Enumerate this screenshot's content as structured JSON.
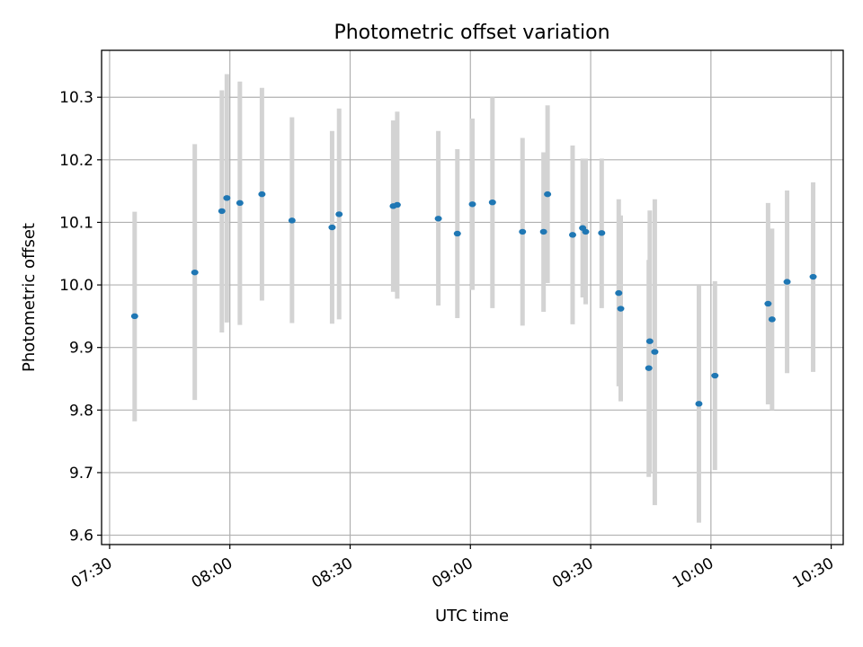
{
  "chart_data": {
    "type": "scatter",
    "title": "Photometric offset variation",
    "xlabel": "UTC time",
    "ylabel": "Photometric offset",
    "xlim": [
      "07:28",
      "10:33"
    ],
    "ylim": [
      9.585,
      10.375
    ],
    "grid": true,
    "x_ticks": [
      "07:30",
      "08:00",
      "08:30",
      "09:00",
      "09:30",
      "10:00",
      "10:30"
    ],
    "y_ticks": [
      9.6,
      9.7,
      9.8,
      9.9,
      10.0,
      10.1,
      10.2,
      10.3
    ],
    "y_tick_labels": [
      "9.6",
      "9.7",
      "9.8",
      "9.9",
      "10.0",
      "10.1",
      "10.2",
      "10.3"
    ],
    "marker_color": "#1f77b4",
    "errorbar_color": "#d3d3d3",
    "points": [
      {
        "t": "07:36:15",
        "y": 9.95,
        "lo": 9.782,
        "hi": 10.117
      },
      {
        "t": "07:51:15",
        "y": 10.02,
        "lo": 9.816,
        "hi": 10.225
      },
      {
        "t": "07:58:00",
        "y": 10.118,
        "lo": 9.924,
        "hi": 10.311
      },
      {
        "t": "07:59:15",
        "y": 10.139,
        "lo": 9.94,
        "hi": 10.337
      },
      {
        "t": "08:02:30",
        "y": 10.131,
        "lo": 9.936,
        "hi": 10.325
      },
      {
        "t": "08:08:00",
        "y": 10.145,
        "lo": 9.975,
        "hi": 10.315
      },
      {
        "t": "08:15:30",
        "y": 10.103,
        "lo": 9.939,
        "hi": 10.268
      },
      {
        "t": "08:25:30",
        "y": 10.092,
        "lo": 9.938,
        "hi": 10.246
      },
      {
        "t": "08:27:15",
        "y": 10.113,
        "lo": 9.945,
        "hi": 10.282
      },
      {
        "t": "08:40:45",
        "y": 10.126,
        "lo": 9.989,
        "hi": 10.263
      },
      {
        "t": "08:41:45",
        "y": 10.128,
        "lo": 9.978,
        "hi": 10.277
      },
      {
        "t": "08:52:00",
        "y": 10.106,
        "lo": 9.967,
        "hi": 10.246
      },
      {
        "t": "08:56:45",
        "y": 10.082,
        "lo": 9.947,
        "hi": 10.217
      },
      {
        "t": "09:00:30",
        "y": 10.129,
        "lo": 9.992,
        "hi": 10.266
      },
      {
        "t": "09:05:30",
        "y": 10.132,
        "lo": 9.963,
        "hi": 10.3
      },
      {
        "t": "09:13:00",
        "y": 10.085,
        "lo": 9.935,
        "hi": 10.235
      },
      {
        "t": "09:18:15",
        "y": 10.085,
        "lo": 9.957,
        "hi": 10.212
      },
      {
        "t": "09:19:15",
        "y": 10.145,
        "lo": 10.003,
        "hi": 10.287
      },
      {
        "t": "09:25:30",
        "y": 10.08,
        "lo": 9.937,
        "hi": 10.223
      },
      {
        "t": "09:28:00",
        "y": 10.091,
        "lo": 9.98,
        "hi": 10.202
      },
      {
        "t": "09:28:45",
        "y": 10.085,
        "lo": 9.969,
        "hi": 10.202
      },
      {
        "t": "09:32:45",
        "y": 10.083,
        "lo": 9.963,
        "hi": 10.202
      },
      {
        "t": "09:37:00",
        "y": 9.987,
        "lo": 9.838,
        "hi": 10.137
      },
      {
        "t": "09:37:30",
        "y": 9.962,
        "lo": 9.814,
        "hi": 10.111
      },
      {
        "t": "09:44:30",
        "y": 9.867,
        "lo": 9.693,
        "hi": 10.04
      },
      {
        "t": "09:44:45",
        "y": 9.91,
        "lo": 9.7,
        "hi": 10.119
      },
      {
        "t": "09:46:00",
        "y": 9.893,
        "lo": 9.648,
        "hi": 10.137
      },
      {
        "t": "09:57:00",
        "y": 9.81,
        "lo": 9.62,
        "hi": 10.0
      },
      {
        "t": "10:01:00",
        "y": 9.855,
        "lo": 9.704,
        "hi": 10.006
      },
      {
        "t": "10:14:15",
        "y": 9.97,
        "lo": 9.809,
        "hi": 10.131
      },
      {
        "t": "10:15:15",
        "y": 9.945,
        "lo": 9.8,
        "hi": 10.09
      },
      {
        "t": "10:19:00",
        "y": 10.005,
        "lo": 9.859,
        "hi": 10.151
      },
      {
        "t": "10:25:30",
        "y": 10.013,
        "lo": 9.861,
        "hi": 10.164
      }
    ]
  }
}
